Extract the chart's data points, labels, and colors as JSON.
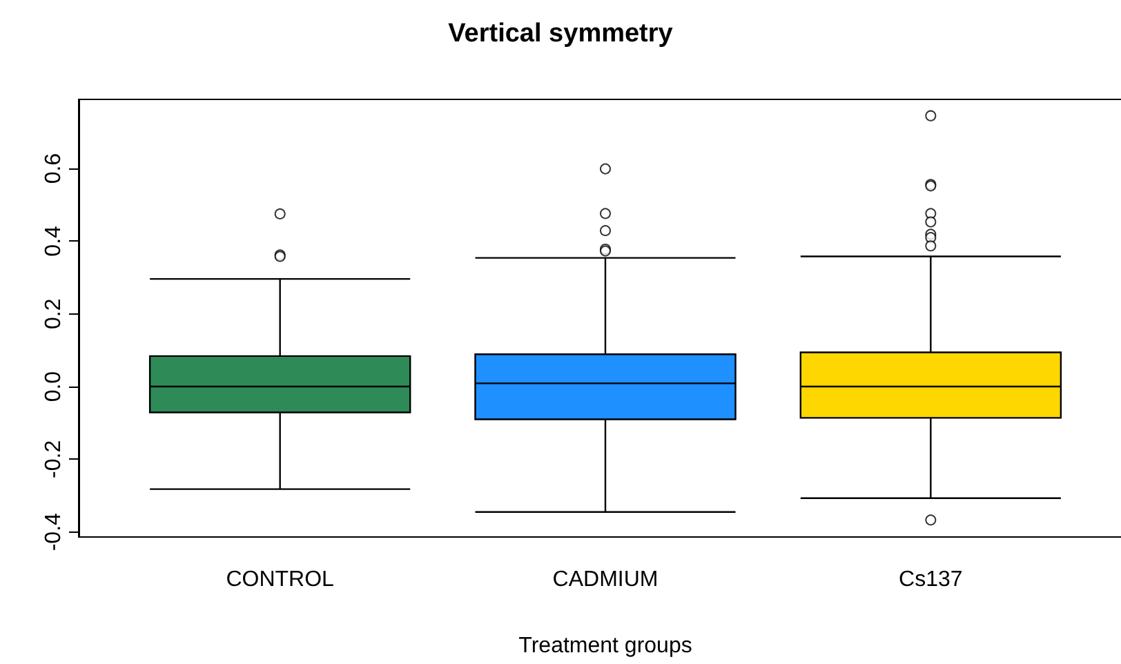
{
  "chart_data": {
    "type": "box",
    "title": "Vertical symmetry",
    "xlabel": "Treatment groups",
    "categories": [
      "CONTROL",
      "CADMIUM",
      "Cs137"
    ],
    "colors": [
      "#2e8b57",
      "#1e90ff",
      "#ffd700"
    ],
    "boxes": [
      {
        "low": -0.282,
        "q1": -0.071,
        "median": 0.0,
        "q3": 0.084,
        "high": 0.296,
        "outliers": [
          0.475,
          0.362,
          0.358
        ]
      },
      {
        "low": -0.345,
        "q1": -0.09,
        "median": 0.009,
        "q3": 0.089,
        "high": 0.354,
        "outliers": [
          0.599,
          0.476,
          0.429,
          0.378,
          0.373
        ]
      },
      {
        "low": -0.307,
        "q1": -0.086,
        "median": 0.0,
        "q3": 0.094,
        "high": 0.358,
        "outliers": [
          0.745,
          0.556,
          0.552,
          0.476,
          0.453,
          0.419,
          0.41,
          0.387,
          -0.367
        ]
      }
    ],
    "ylim": [
      -0.41,
      0.79
    ],
    "yticks": [
      -0.4,
      -0.2,
      {
        "value": 0,
        "label": "0.0"
      },
      0.2,
      0.4,
      0.6
    ],
    "grid": false
  }
}
